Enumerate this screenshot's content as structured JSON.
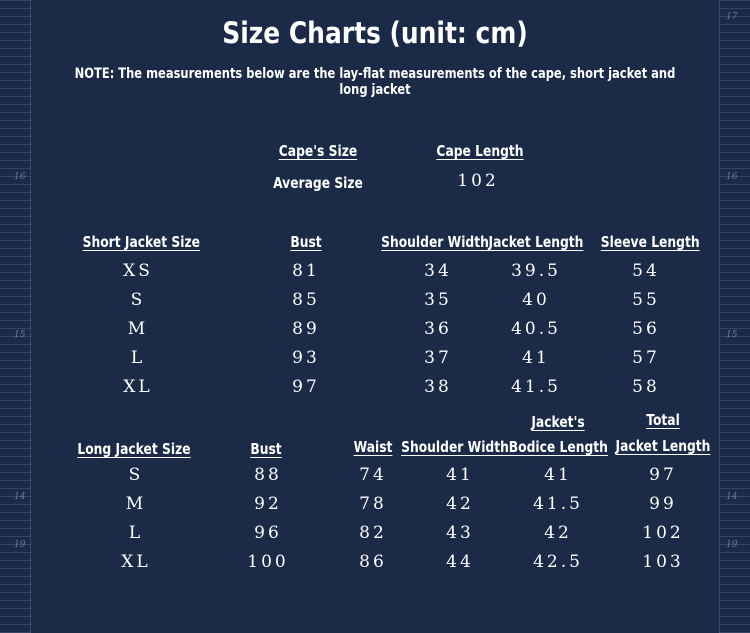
{
  "title": "Size Charts (unit: cm)",
  "note": "NOTE: The measurements below are the lay-flat measurements of the cape, short jacket and long jacket",
  "ruler": {
    "left_ticks": [
      "16",
      "15",
      "14",
      "19"
    ],
    "right_ticks": [
      "17",
      "16",
      "15",
      "14",
      "19"
    ]
  },
  "cape": {
    "headers": [
      "Cape's Size",
      "Cape Length"
    ],
    "rows": [
      [
        "Average Size",
        "102"
      ]
    ]
  },
  "short_jacket": {
    "headers": [
      "Short Jacket Size",
      "Bust",
      "Shoulder Width",
      "Jacket Length",
      "Sleeve Length"
    ],
    "rows": [
      [
        "XS",
        "81",
        "34",
        "39.5",
        "54"
      ],
      [
        "S",
        "85",
        "35",
        "40",
        "55"
      ],
      [
        "M",
        "89",
        "36",
        "40.5",
        "56"
      ],
      [
        "L",
        "93",
        "37",
        "41",
        "57"
      ],
      [
        "XL",
        "97",
        "38",
        "41.5",
        "58"
      ]
    ]
  },
  "long_jacket": {
    "headers": [
      "Long Jacket Size",
      "Bust",
      "Waist",
      "Shoulder Width",
      "Jacket's Bodice Length",
      "Total Jacket Length"
    ],
    "header_line1": {
      "bodice": "Jacket's",
      "total": "Total"
    },
    "header_line2": {
      "bodice": "Bodice Length",
      "total": "Jacket Length"
    },
    "rows": [
      [
        "S",
        "88",
        "74",
        "41",
        "41",
        "97"
      ],
      [
        "M",
        "92",
        "78",
        "42",
        "41.5",
        "99"
      ],
      [
        "L",
        "96",
        "82",
        "43",
        "42",
        "102"
      ],
      [
        "XL",
        "100",
        "86",
        "44",
        "42.5",
        "103"
      ]
    ]
  }
}
